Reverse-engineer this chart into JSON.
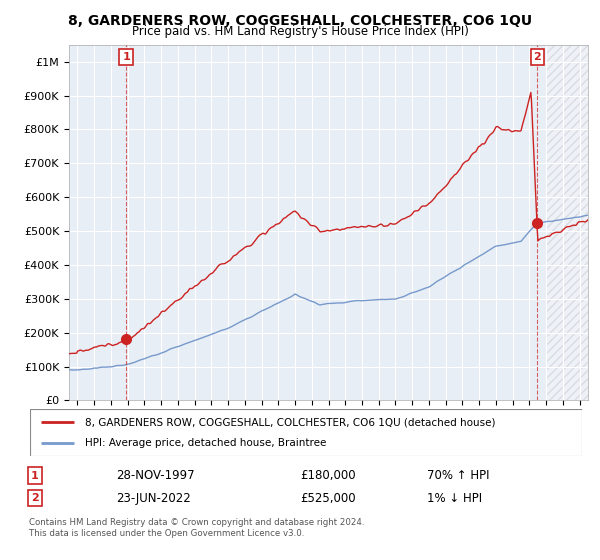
{
  "title": "8, GARDENERS ROW, COGGESHALL, COLCHESTER, CO6 1QU",
  "subtitle": "Price paid vs. HM Land Registry's House Price Index (HPI)",
  "ylim": [
    0,
    1050000
  ],
  "yticks": [
    0,
    100000,
    200000,
    300000,
    400000,
    500000,
    600000,
    700000,
    800000,
    900000,
    1000000
  ],
  "ytick_labels": [
    "£0",
    "£100K",
    "£200K",
    "£300K",
    "£400K",
    "£500K",
    "£600K",
    "£700K",
    "£800K",
    "£900K",
    "£1M"
  ],
  "background_color": "#ffffff",
  "plot_bg_color": "#e8eef5",
  "grid_color": "#ffffff",
  "sale1_date_num": 1997.91,
  "sale1_price": 180000,
  "sale2_date_num": 2022.48,
  "sale2_price": 525000,
  "legend_line1": "8, GARDENERS ROW, COGGESHALL, COLCHESTER, CO6 1QU (detached house)",
  "legend_line2": "HPI: Average price, detached house, Braintree",
  "footer": "Contains HM Land Registry data © Crown copyright and database right 2024.\nThis data is licensed under the Open Government Licence v3.0.",
  "red_color": "#cc2222",
  "blue_color": "#7799cc",
  "xmin": 1994.5,
  "xmax": 2025.5,
  "xticks": [
    1995,
    1996,
    1997,
    1998,
    1999,
    2000,
    2001,
    2002,
    2003,
    2004,
    2005,
    2006,
    2007,
    2008,
    2009,
    2010,
    2011,
    2012,
    2013,
    2014,
    2015,
    2016,
    2017,
    2018,
    2019,
    2020,
    2021,
    2022,
    2023,
    2024,
    2025
  ],
  "hatch_start": 2023.0
}
